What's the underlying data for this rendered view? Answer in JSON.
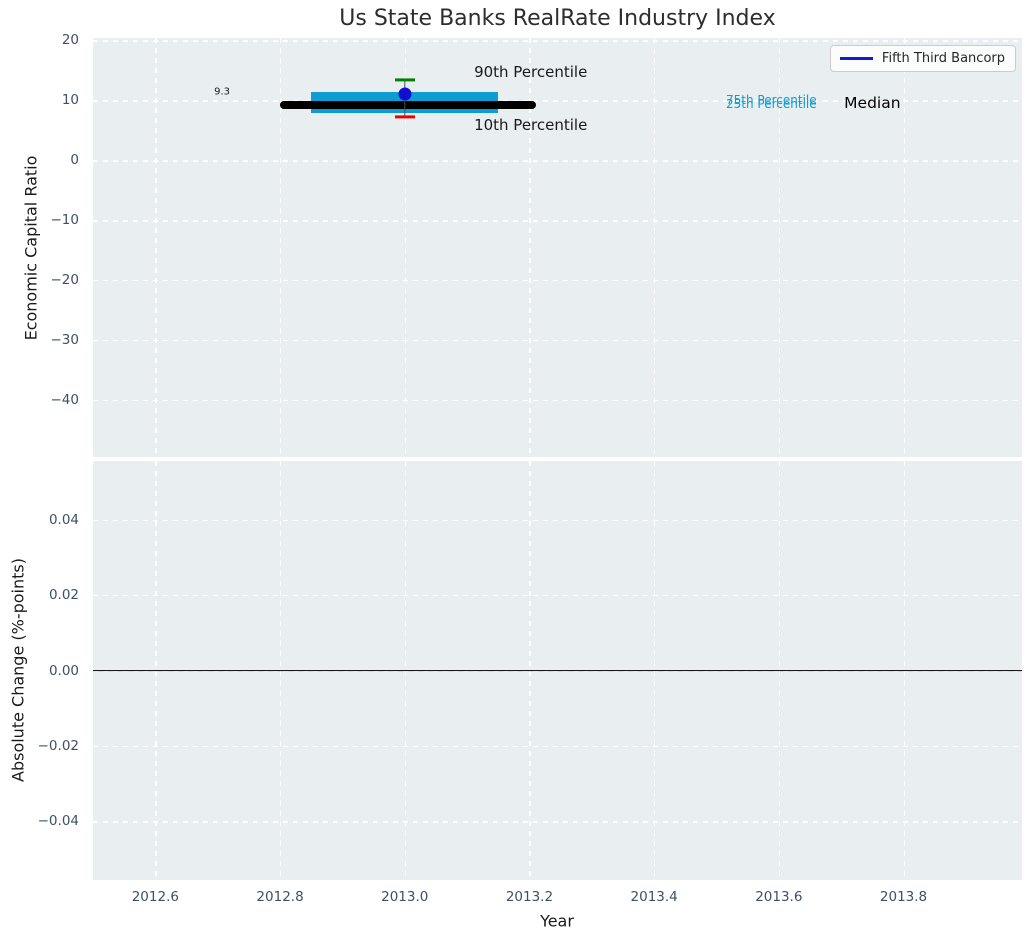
{
  "title": "Us State Banks RealRate Industry Index",
  "legend": {
    "label": "Fifth Third Bancorp"
  },
  "colors": {
    "plot_bg": "#e9eef1",
    "grid": "#ffffff",
    "tick_label": "#3f5066",
    "iqr_bar": "#0d9dd3",
    "median_line": "#000000",
    "p90_cap": "#008000",
    "p10_cap": "#f00000",
    "company_dot": "#0f0fcd",
    "legend_line": "#1717d6",
    "zero_line": "#000000"
  },
  "chart_data": [
    {
      "type": "scatter",
      "name": "economic-capital-ratio-panel",
      "title": "Us State Banks RealRate Industry Index",
      "ylabel": "Economic Capital Ratio",
      "grid": true,
      "legend_position": "upper right",
      "xlim": [
        2012.5,
        2013.99
      ],
      "ylim": [
        -49.5,
        20.4
      ],
      "yticks": {
        "values": [
          20,
          10,
          0,
          -10,
          -20,
          -30,
          -40
        ],
        "labels": [
          "20",
          "10",
          "0",
          "−10",
          "−20",
          "−30",
          "−40"
        ]
      },
      "xticks": {
        "values": [
          2012.6,
          2012.8,
          2013.0,
          2013.2,
          2013.4,
          2013.6,
          2013.8
        ],
        "labels": [
          "2012.6",
          "2012.8",
          "2013.0",
          "2013.2",
          "2013.4",
          "2013.6",
          "2013.8"
        ]
      },
      "series": [
        {
          "name": "Fifth Third Bancorp",
          "x": 2013.0,
          "company_value": 11.1,
          "median": 9.3,
          "p75": 11.4,
          "p25": 7.9,
          "p90": 13.4,
          "p10": 7.3,
          "median_line_span": [
            2012.8,
            2013.21
          ],
          "iqr_bar_span": [
            2012.85,
            2013.15
          ],
          "cap_span": [
            2012.984,
            2013.016
          ]
        }
      ],
      "annotations": [
        {
          "name": "annotation-median-value",
          "text": "9.3",
          "x": 2012.707,
          "y": 11.33,
          "size": 10,
          "color": "#1a1a1a"
        },
        {
          "name": "annotation-90th-percentile",
          "text": "90th Percentile",
          "x": 2013.202,
          "y": 14.67,
          "size": 15,
          "color": "#1a1a1a"
        },
        {
          "name": "annotation-10th-percentile",
          "text": "10th Percentile",
          "x": 2013.202,
          "y": 5.83,
          "size": 15,
          "color": "#1a1a1a"
        },
        {
          "name": "annotation-75th-percentile",
          "text": "75th Percentile",
          "x": 2013.588,
          "y": 10.08,
          "size": 12,
          "color": "#0d9dd3"
        },
        {
          "name": "annotation-25th-percentile",
          "text": "25th Percentile",
          "x": 2013.588,
          "y": 9.42,
          "size": 12,
          "color": "#0d9dd3"
        },
        {
          "name": "annotation-median-label",
          "text": "Median",
          "x": 2013.75,
          "y": 9.5,
          "size": 15.5,
          "color": "#000000"
        }
      ]
    },
    {
      "type": "line",
      "name": "absolute-change-panel",
      "ylabel": "Absolute Change (%-points)",
      "xlabel": "Year",
      "grid": true,
      "xlim": [
        2012.5,
        2013.99
      ],
      "ylim": [
        -0.0555,
        0.0555
      ],
      "yticks": {
        "values": [
          0.04,
          0.02,
          0.0,
          -0.02,
          -0.04
        ],
        "labels": [
          "0.04",
          "0.02",
          "0.00",
          "−0.02",
          "−0.04"
        ]
      },
      "zero_line_y": 0.0,
      "series": []
    }
  ]
}
